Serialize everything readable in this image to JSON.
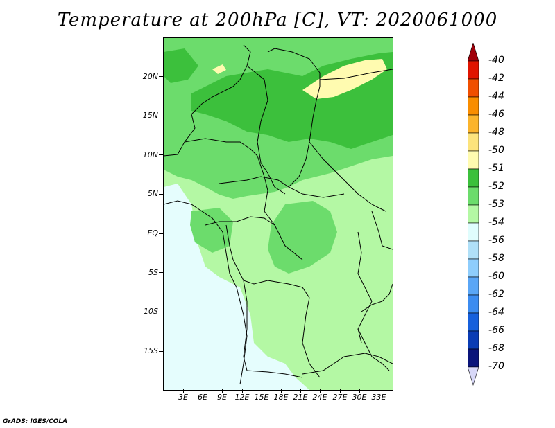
{
  "title": "Temperature at 200hPa [C], VT: 2020061000",
  "credit": "GrADS: IGES/COLA",
  "map": {
    "ylabels": [
      "20N",
      "15N",
      "10N",
      "5N",
      "EQ",
      "5S",
      "10S",
      "15S"
    ],
    "xlabels": [
      "3E",
      "6E",
      "9E",
      "12E",
      "15E",
      "18E",
      "21E",
      "24E",
      "27E",
      "30E",
      "33E"
    ]
  },
  "colorbar": {
    "labels": [
      "-40",
      "-42",
      "-44",
      "-46",
      "-48",
      "-50",
      "-51",
      "-52",
      "-53",
      "-54",
      "-56",
      "-58",
      "-60",
      "-62",
      "-64",
      "-66",
      "-68",
      "-70"
    ],
    "colors": [
      "#a0000a",
      "#e01400",
      "#f04f00",
      "#f98d00",
      "#fbb42c",
      "#fce37c",
      "#fffbb0",
      "#3cc03c",
      "#6cdc6c",
      "#b4f8a4",
      "#e0fdfd",
      "#b0e0f8",
      "#8ecdfc",
      "#5aa6f6",
      "#3c8cf0",
      "#1660dc",
      "#0a3cb4",
      "#0a147a",
      "#d8d8f8"
    ]
  },
  "legend_colors": {
    "c51": "#fffbb0",
    "c52": "#3cc03c",
    "c53": "#6cdc6c",
    "c54": "#b4f8a4",
    "c56": "#e0fdfd"
  }
}
